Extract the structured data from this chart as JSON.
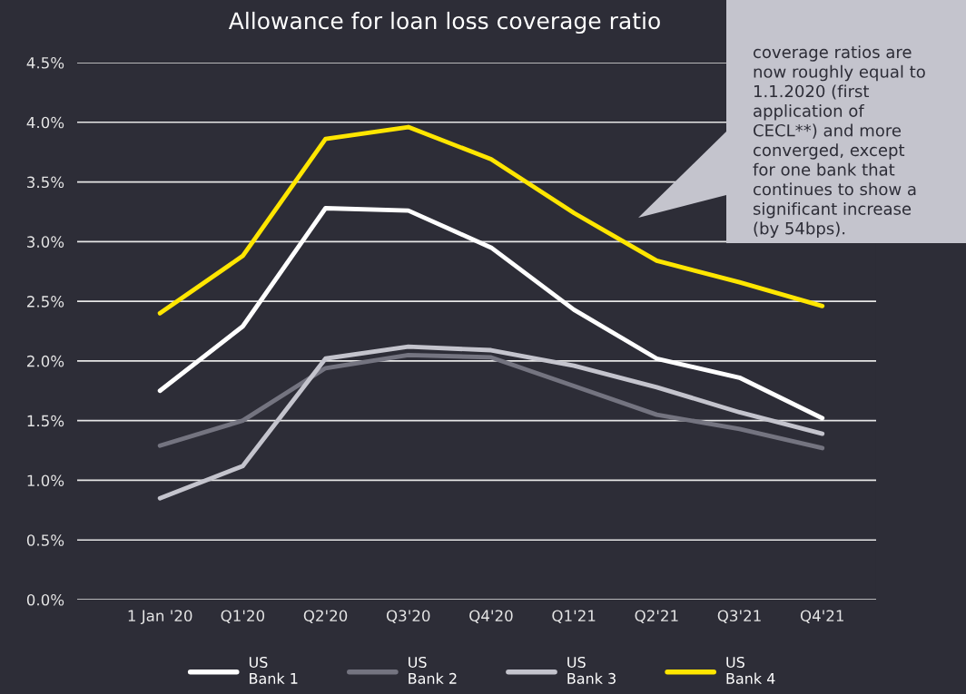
{
  "chart_data": {
    "type": "line",
    "title": "Allowance for loan loss coverage ratio",
    "categories": [
      "1 Jan '20",
      "Q1'20",
      "Q2'20",
      "Q3'20",
      "Q4'20",
      "Q1'21",
      "Q2'21",
      "Q3'21",
      "Q4'21"
    ],
    "series": [
      {
        "name": "US\nBank 1",
        "color": "#ffffff",
        "values": [
          1.75,
          2.29,
          3.28,
          3.26,
          2.95,
          2.43,
          2.02,
          1.86,
          1.52
        ]
      },
      {
        "name": "US\nBank 2",
        "color": "#747480",
        "values": [
          1.29,
          1.5,
          1.94,
          2.05,
          2.03,
          1.79,
          1.55,
          1.43,
          1.27
        ]
      },
      {
        "name": "US\nBank 3",
        "color": "#c4c4cd",
        "values": [
          0.85,
          1.12,
          2.02,
          2.12,
          2.09,
          1.96,
          1.78,
          1.57,
          1.39
        ]
      },
      {
        "name": "US\nBank 4",
        "color": "#ffe600",
        "values": [
          2.4,
          2.88,
          3.86,
          3.96,
          3.69,
          3.24,
          2.84,
          2.66,
          2.46
        ]
      }
    ],
    "ylim": [
      0,
      4.5
    ],
    "yticks": [
      {
        "value": 0,
        "label": "0.0%"
      },
      {
        "value": 0.5,
        "label": "0.5%"
      },
      {
        "value": 1,
        "label": "1.0%"
      },
      {
        "value": 1.5,
        "label": "1.5%"
      },
      {
        "value": 2,
        "label": "2.0%"
      },
      {
        "value": 2.5,
        "label": "2.5%"
      },
      {
        "value": 3,
        "label": "3.0%"
      },
      {
        "value": 3.5,
        "label": "3.5%"
      },
      {
        "value": 4,
        "label": "4.0%"
      },
      {
        "value": 4.5,
        "label": "4.5%"
      }
    ],
    "grid": "y",
    "legend": "bottom",
    "marker": "none",
    "line_style": "solid",
    "annotations": [
      "coverage ratios are\nnow roughly equal to\n1.1.2020 (first\napplication of\nCECL**) and more\nconverged, except\nfor one bank that\ncontinues to show a\nsignificant increase\n(by 54bps)."
    ]
  }
}
